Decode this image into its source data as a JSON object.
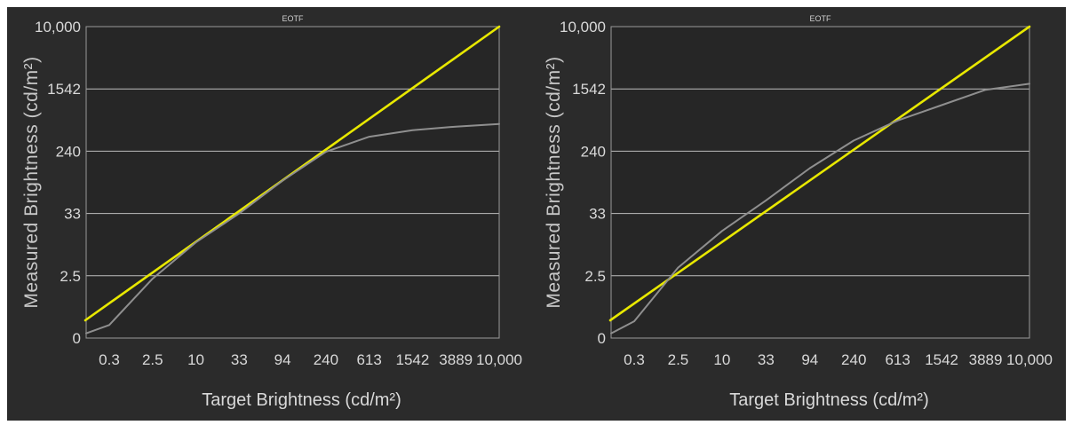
{
  "chart_data": [
    {
      "type": "line",
      "title": "EOTF",
      "xlabel": "Target Brightness (cd/m²)",
      "ylabel": "Measured Brightness (cd/m²)",
      "x_ticks": [
        "0.3",
        "2.5",
        "10",
        "33",
        "94",
        "240",
        "613",
        "1542",
        "3889",
        "10,000"
      ],
      "y_ticks": [
        "0",
        "2.5",
        "33",
        "240",
        "1542",
        "10,000"
      ],
      "grid": true,
      "colors": {
        "target": "#e8e800",
        "measured": "#8f8f8f",
        "background": "#262626"
      },
      "series": [
        {
          "role": "target",
          "x": [
            0,
            10000
          ],
          "y": [
            0,
            10000
          ]
        },
        {
          "role": "measured",
          "x": [
            0,
            0.3,
            2.5,
            10,
            33,
            94,
            240,
            613,
            1542,
            3889,
            10000
          ],
          "y": [
            0.1,
            0.3,
            2.3,
            10,
            33,
            94,
            235,
            370,
            450,
            500,
            540
          ]
        }
      ]
    },
    {
      "type": "line",
      "title": "EOTF",
      "xlabel": "Target Brightness (cd/m²)",
      "ylabel": "Measured Brightness (cd/m²)",
      "x_ticks": [
        "0.3",
        "2.5",
        "10",
        "33",
        "94",
        "240",
        "613",
        "1542",
        "3889",
        "10,000"
      ],
      "y_ticks": [
        "0",
        "2.5",
        "33",
        "240",
        "1542",
        "10,000"
      ],
      "grid": true,
      "colors": {
        "target": "#e8e800",
        "measured": "#8f8f8f",
        "background": "#262626"
      },
      "series": [
        {
          "role": "target",
          "x": [
            0,
            10000
          ],
          "y": [
            0,
            10000
          ]
        },
        {
          "role": "measured",
          "x": [
            0,
            0.3,
            2.5,
            10,
            33,
            94,
            240,
            613,
            1542,
            3889,
            10000
          ],
          "y": [
            0.1,
            0.4,
            3.5,
            16,
            50,
            140,
            330,
            600,
            950,
            1500,
            1800
          ]
        }
      ]
    }
  ]
}
